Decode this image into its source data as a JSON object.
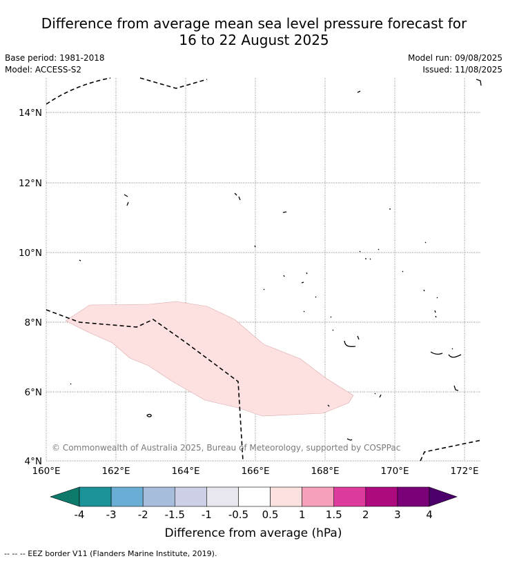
{
  "title": {
    "line1": "Difference from average mean sea level pressure forecast for",
    "line2": "16 to 22 August 2025"
  },
  "meta": {
    "base_period": "Base period: 1981-2018",
    "model": "Model: ACCESS-S2",
    "model_run": "Model run: 09/08/2025",
    "issued": "Issued: 11/08/2025"
  },
  "map": {
    "lon_ticks": [
      "160°E",
      "162°E",
      "164°E",
      "166°E",
      "168°E",
      "170°E",
      "172°E"
    ],
    "lat_ticks": [
      "14°N",
      "12°N",
      "10°N",
      "8°N",
      "6°N",
      "4°N"
    ],
    "anomaly_fill": "#fde0e0",
    "copyright": "© Commonwealth of Australia 2025, Bureau of Meteorology, supported by COSPPac"
  },
  "colorbar": {
    "title": "Difference from average (hPa)",
    "labels": [
      "-4",
      "-3",
      "-2",
      "-1.5",
      "-1",
      "-0.5",
      "0.5",
      "1",
      "1.5",
      "2",
      "3",
      "4"
    ],
    "colors": [
      "#0d7a6c",
      "#1c9399",
      "#6aaed6",
      "#a6bddb",
      "#cccfe6",
      "#e8e6ee",
      "#ffffff",
      "#fde0e0",
      "#f7a0bb",
      "#dd3c9e",
      "#ad0a7e",
      "#7a0177",
      "#4d006b"
    ]
  },
  "legend": {
    "eez": "--  --  -- EEZ border V11 (Flanders Marine Institute, 2019)."
  }
}
